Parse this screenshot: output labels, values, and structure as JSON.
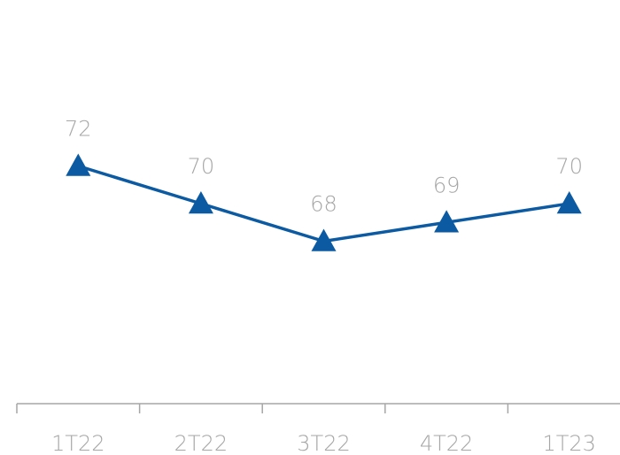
{
  "chart_data": {
    "type": "line",
    "title": "",
    "xlabel": "",
    "ylabel": "",
    "categories": [
      "1T22",
      "2T22",
      "3T22",
      "4T22",
      "1T23"
    ],
    "series": [
      {
        "values": [
          72,
          70,
          68,
          69,
          70
        ],
        "color": "#0b5aa2",
        "marker": "triangle"
      }
    ],
    "data_labels": [
      "72",
      "70",
      "68",
      "69",
      "70"
    ],
    "ylim": [
      62,
      78
    ],
    "grid": false,
    "legend": "none",
    "axis_color": "#a6a6a6",
    "label_color": "#a6a6a6"
  }
}
